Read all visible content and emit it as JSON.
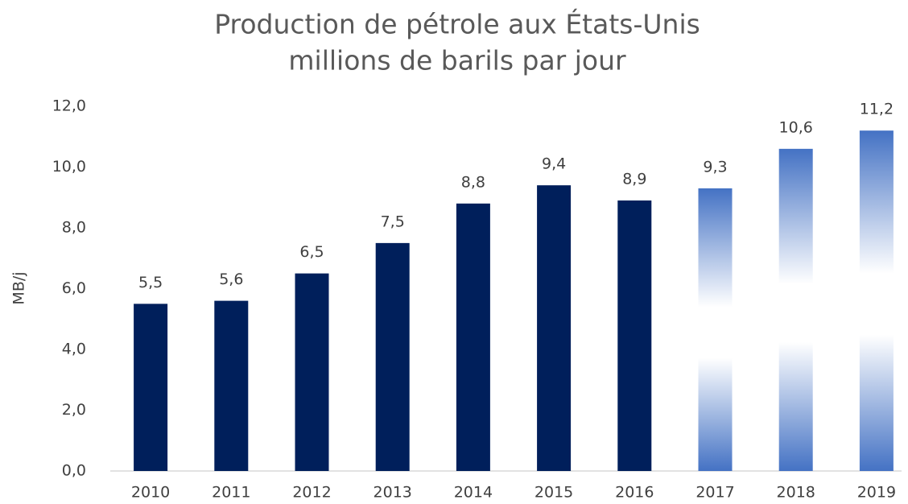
{
  "chart_data": {
    "type": "bar",
    "title": "Production de pétrole aux États-Unis",
    "subtitle": "millions de barils par jour",
    "y_label": "MB/j",
    "categories": [
      "2010",
      "2011",
      "2012",
      "2013",
      "2014",
      "2015",
      "2016",
      "2017",
      "2018",
      "2019"
    ],
    "values": [
      5.5,
      5.6,
      6.5,
      7.5,
      8.8,
      9.4,
      8.9,
      9.3,
      10.6,
      11.2
    ],
    "value_labels": [
      "5,5",
      "5,6",
      "6,5",
      "7,5",
      "8,8",
      "9,4",
      "8,9",
      "9,3",
      "10,6",
      "11,2"
    ],
    "colors": [
      "#001f5b",
      "#001f5b",
      "#001f5b",
      "#001f5b",
      "#001f5b",
      "#001f5b",
      "#001f5b",
      "#4472c4",
      "#4472c4",
      "#4472c4"
    ],
    "fill_styles": [
      "solid",
      "solid",
      "solid",
      "solid",
      "solid",
      "solid",
      "solid",
      "gradient",
      "gradient",
      "gradient"
    ],
    "ylim": [
      0,
      12
    ],
    "yticks": [
      {
        "value": 0,
        "label": "0,0"
      },
      {
        "value": 2,
        "label": "2,0"
      },
      {
        "value": 4,
        "label": "4,0"
      },
      {
        "value": 6,
        "label": "6,0"
      },
      {
        "value": 8,
        "label": "8,0"
      },
      {
        "value": 10,
        "label": "10,0"
      },
      {
        "value": 12,
        "label": "12,0"
      }
    ],
    "grid": false
  }
}
